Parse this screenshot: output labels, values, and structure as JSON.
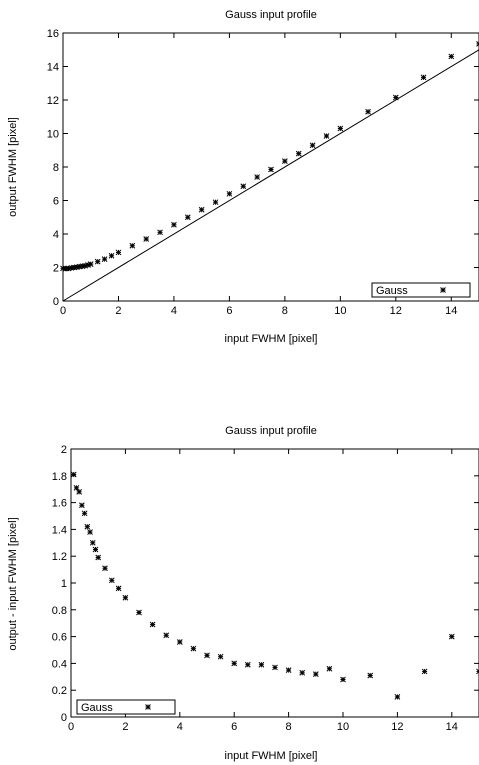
{
  "chart_data": [
    {
      "type": "scatter",
      "title": "Gauss input profile",
      "xlabel": "input FWHM [pixel]",
      "ylabel": "output FWHM [pixel]",
      "xlim": [
        0,
        15
      ],
      "ylim": [
        0,
        16
      ],
      "x_ticks": [
        0,
        2,
        4,
        6,
        8,
        10,
        12,
        14
      ],
      "y_ticks": [
        0,
        2,
        4,
        6,
        8,
        10,
        12,
        14,
        16
      ],
      "grid": false,
      "legend_position": "bottom-right",
      "reference_line": {
        "type": "y=x",
        "x": [
          0,
          15
        ],
        "y": [
          0,
          15
        ]
      },
      "series": [
        {
          "name": "Gauss",
          "marker": "star",
          "x": [
            0,
            0.1,
            0.2,
            0.3,
            0.4,
            0.5,
            0.6,
            0.7,
            0.8,
            0.9,
            1.0,
            1.25,
            1.5,
            1.75,
            2.0,
            2.5,
            3.0,
            3.5,
            4.0,
            4.5,
            5.0,
            5.5,
            6.0,
            6.5,
            7.0,
            7.5,
            8.0,
            8.5,
            9.0,
            9.5,
            10.0,
            11.0,
            12.0,
            13.0,
            14.0,
            15.0
          ],
          "y": [
            1.95,
            1.93,
            1.94,
            1.98,
            2.0,
            2.02,
            2.05,
            2.08,
            2.1,
            2.15,
            2.2,
            2.35,
            2.5,
            2.7,
            2.9,
            3.3,
            3.7,
            4.1,
            4.55,
            5.0,
            5.45,
            5.9,
            6.4,
            6.85,
            7.4,
            7.85,
            8.35,
            8.8,
            9.3,
            9.85,
            10.3,
            11.3,
            12.15,
            13.35,
            14.6,
            15.35
          ]
        }
      ]
    },
    {
      "type": "scatter",
      "title": "Gauss input profile",
      "xlabel": "input FWHM [pixel]",
      "ylabel": "output - input FWHM [pixel]",
      "xlim": [
        0,
        15
      ],
      "ylim": [
        0,
        2
      ],
      "x_ticks": [
        0,
        2,
        4,
        6,
        8,
        10,
        12,
        14
      ],
      "y_ticks": [
        0,
        0.2,
        0.4,
        0.6,
        0.8,
        1,
        1.2,
        1.4,
        1.6,
        1.8,
        2
      ],
      "grid": false,
      "legend_position": "bottom-left",
      "series": [
        {
          "name": "Gauss",
          "marker": "star",
          "x": [
            0.1,
            0.2,
            0.3,
            0.4,
            0.5,
            0.6,
            0.7,
            0.8,
            0.9,
            1.0,
            1.25,
            1.5,
            1.75,
            2.0,
            2.5,
            3.0,
            3.5,
            4.0,
            4.5,
            5.0,
            5.5,
            6.0,
            6.5,
            7.0,
            7.5,
            8.0,
            8.5,
            9.0,
            9.5,
            10.0,
            11.0,
            12.0,
            13.0,
            14.0,
            15.0
          ],
          "y": [
            1.81,
            1.71,
            1.68,
            1.58,
            1.52,
            1.42,
            1.38,
            1.3,
            1.25,
            1.19,
            1.11,
            1.02,
            0.96,
            0.89,
            0.78,
            0.69,
            0.61,
            0.56,
            0.51,
            0.46,
            0.45,
            0.4,
            0.39,
            0.39,
            0.37,
            0.35,
            0.33,
            0.32,
            0.36,
            0.28,
            0.31,
            0.15,
            0.34,
            0.6,
            0.34
          ]
        }
      ]
    }
  ]
}
